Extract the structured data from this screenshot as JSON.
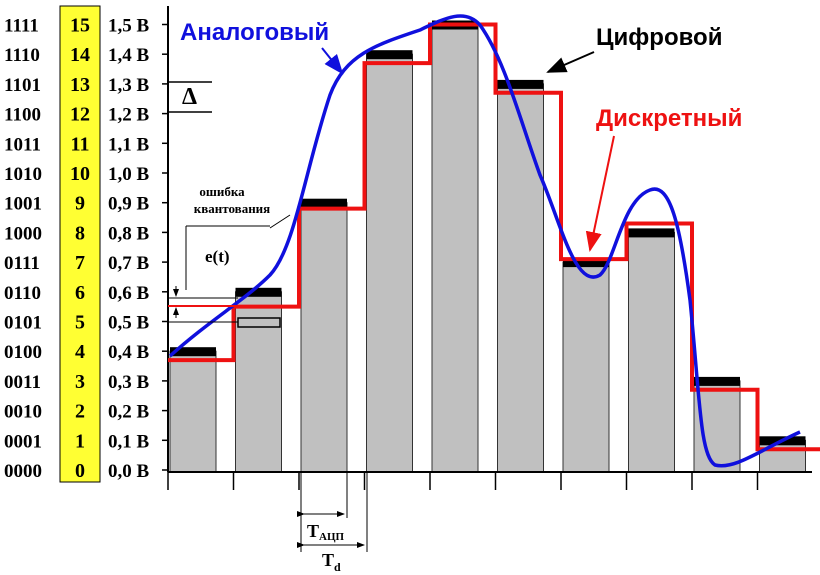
{
  "codes": [
    "0000",
    "0001",
    "0010",
    "0011",
    "0100",
    "0101",
    "0110",
    "0111",
    "1000",
    "1001",
    "1010",
    "1011",
    "1100",
    "1101",
    "1110",
    "1111"
  ],
  "level_numbers": [
    "0",
    "1",
    "2",
    "3",
    "4",
    "5",
    "6",
    "7",
    "8",
    "9",
    "10",
    "11",
    "12",
    "13",
    "14",
    "15"
  ],
  "voltages": [
    "0,0 В",
    "0,1 В",
    "0,2 В",
    "0,3 В",
    "0,4 В",
    "0,5 В",
    "0,6 В",
    "0,7 В",
    "0,8 В",
    "0,9 В",
    "1,0 В",
    "1,1 В",
    "1,2 В",
    "1,3 В",
    "1,4 В",
    "1,5 В"
  ],
  "legend": {
    "analog": "Аналоговый",
    "digital": "Цифровой",
    "discrete": "Дискретный"
  },
  "annotations": {
    "delta": "Δ",
    "error_line1": "ошибка",
    "error_line2": "квантования",
    "error_fn": "e(t)",
    "t_adc_main": "T",
    "t_adc_sub": "АЦП",
    "t_d_main": "T",
    "t_d_sub": "d"
  },
  "colors": {
    "analog": "#1010dd",
    "discrete": "#ee1111",
    "bar": "#c0c0c0",
    "digital_cap": "#000000",
    "level_column": "#ffff33"
  },
  "chart_data": {
    "type": "bar",
    "sample_index": [
      1,
      2,
      3,
      4,
      5,
      6,
      7,
      8,
      9,
      10
    ],
    "quantized_level": [
      4,
      6,
      9,
      14,
      15,
      13,
      7,
      8,
      3,
      1
    ],
    "discrete_level": [
      3.7,
      5.5,
      8.8,
      13.7,
      15.0,
      12.7,
      7.1,
      8.3,
      2.7,
      0.7
    ],
    "ylim": [
      0,
      15
    ],
    "series": [
      {
        "name": "Аналоговый"
      },
      {
        "name": "Дискретный"
      },
      {
        "name": "Цифровой"
      }
    ]
  }
}
